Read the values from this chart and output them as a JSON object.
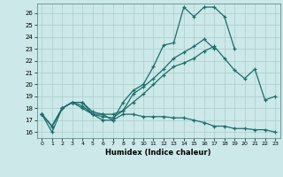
{
  "title": "",
  "xlabel": "Humidex (Indice chaleur)",
  "bg_color": "#cce8e8",
  "grid_color": "#aacccc",
  "line_color": "#1a6e6a",
  "xlim": [
    -0.5,
    23.5
  ],
  "ylim": [
    15.5,
    26.8
  ],
  "xticks": [
    0,
    1,
    2,
    3,
    4,
    5,
    6,
    7,
    8,
    9,
    10,
    11,
    12,
    13,
    14,
    15,
    16,
    17,
    18,
    19,
    20,
    21,
    22,
    23
  ],
  "yticks": [
    16,
    17,
    18,
    19,
    20,
    21,
    22,
    23,
    24,
    25,
    26
  ],
  "lines": [
    [
      17.5,
      16.0,
      18.0,
      18.5,
      18.0,
      17.5,
      17.5,
      17.0,
      18.5,
      19.5,
      20.0,
      21.5,
      23.3,
      23.5,
      26.5,
      25.7,
      26.5,
      26.5,
      25.7,
      23.0,
      null,
      null,
      null,
      null
    ],
    [
      17.5,
      16.5,
      18.0,
      18.5,
      18.2,
      17.5,
      17.3,
      17.2,
      17.8,
      19.2,
      19.8,
      20.5,
      21.3,
      22.2,
      22.7,
      23.2,
      23.8,
      23.0,
      null,
      null,
      null,
      null,
      null,
      null
    ],
    [
      17.5,
      16.5,
      18.0,
      18.5,
      18.5,
      17.7,
      17.5,
      17.5,
      17.8,
      18.5,
      19.2,
      20.0,
      20.8,
      21.5,
      21.8,
      22.2,
      22.8,
      23.2,
      22.2,
      21.2,
      20.5,
      21.3,
      18.7,
      19.0
    ],
    [
      17.5,
      16.5,
      18.0,
      18.5,
      18.5,
      17.5,
      17.0,
      17.0,
      17.5,
      17.5,
      17.3,
      17.3,
      17.3,
      17.2,
      17.2,
      17.0,
      16.8,
      16.5,
      16.5,
      16.3,
      16.3,
      16.2,
      16.2,
      16.0
    ]
  ]
}
